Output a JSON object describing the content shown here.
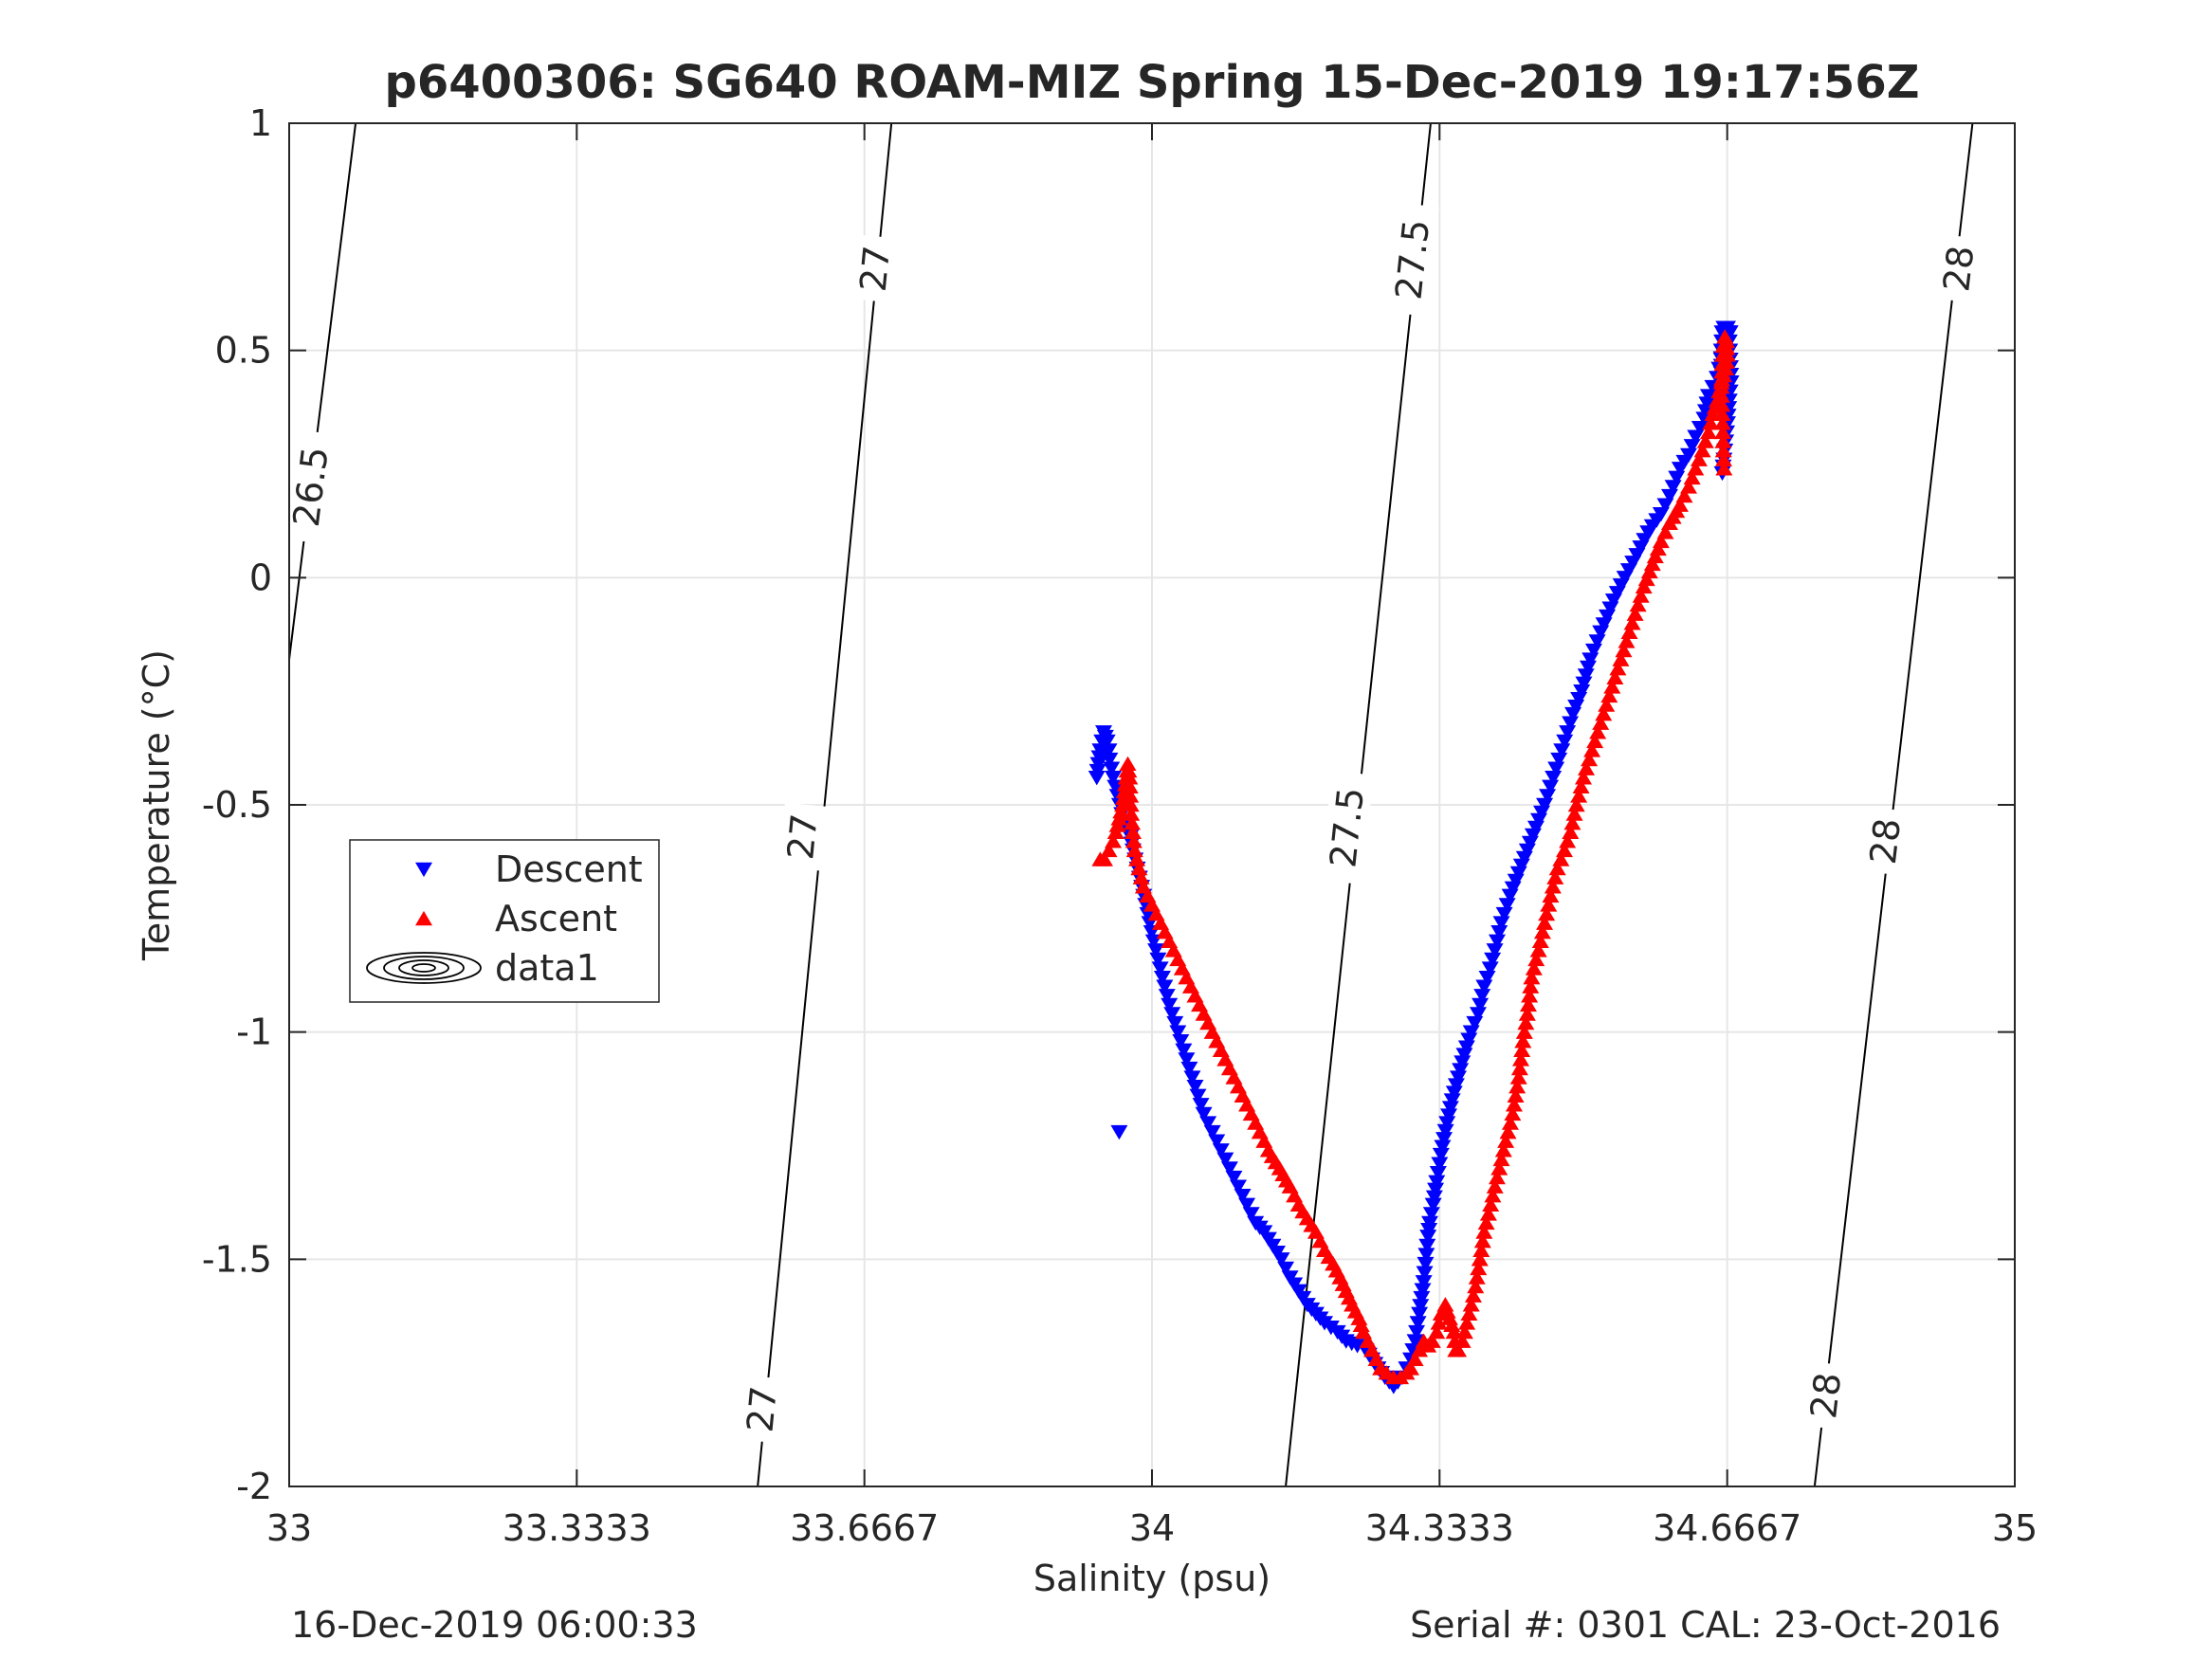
{
  "chart_data": {
    "type": "scatter",
    "title": "p6400306: SG640 ROAM-MIZ Spring 15-Dec-2019 19:17:56Z",
    "xlabel": "Salinity (psu)",
    "ylabel": "Temperature (°C)",
    "xlim": [
      33,
      35
    ],
    "ylim": [
      -2,
      1
    ],
    "xticks": [
      33,
      33.3333,
      33.6667,
      34,
      34.3333,
      34.6667,
      35
    ],
    "xticklabels": [
      "33",
      "33.3333",
      "33.6667",
      "34",
      "34.3333",
      "34.6667",
      "35"
    ],
    "yticks": [
      -2,
      -1.5,
      -1,
      -0.5,
      0,
      0.5,
      1
    ],
    "yticklabels": [
      "-2",
      "-1.5",
      "-1",
      "-0.5",
      "0",
      "0.5",
      "1"
    ],
    "grid": true,
    "legend_position": "middle-left",
    "footer_left": "16-Dec-2019 06:00:33",
    "footer_right": "Serial #: 0301  CAL: 23-Oct-2016",
    "contours": [
      {
        "level": 26.5,
        "label": "26.5",
        "points": [
          [
            33.077,
            1.0
          ],
          [
            33.0,
            -0.18
          ]
        ],
        "label_at": [
          [
            33.025,
            0.2
          ]
        ]
      },
      {
        "level": 27,
        "label": "27",
        "points": [
          [
            33.698,
            1.0
          ],
          [
            33.543,
            -2.0
          ]
        ],
        "label_at": [
          [
            33.679,
            0.68
          ],
          [
            33.595,
            -0.57
          ],
          [
            33.548,
            -1.83
          ]
        ]
      },
      {
        "level": 27.5,
        "label": "27.5",
        "points": [
          [
            34.323,
            1.0
          ],
          [
            34.155,
            -2.0
          ]
        ],
        "label_at": [
          [
            34.302,
            0.7
          ],
          [
            34.226,
            -0.55
          ]
        ]
      },
      {
        "level": 28,
        "label": "28",
        "points": [
          [
            34.951,
            1.0
          ],
          [
            34.768,
            -2.0
          ]
        ],
        "label_at": [
          [
            34.935,
            0.68
          ],
          [
            34.85,
            -0.58
          ],
          [
            34.781,
            -1.8
          ]
        ]
      }
    ],
    "series": [
      {
        "name": "Descent",
        "color": "#0000ff",
        "marker": "triangle-down",
        "x": [
          34.662,
          34.664,
          34.666,
          34.668,
          34.669,
          34.67,
          34.671,
          34.669,
          34.667,
          34.665,
          34.663,
          34.661,
          34.66,
          34.66,
          34.661,
          34.663,
          34.665,
          34.667,
          34.67,
          34.66,
          34.655,
          34.645,
          34.64,
          34.63,
          34.622,
          34.612,
          34.6,
          34.59,
          34.575,
          34.562,
          34.548,
          34.535,
          34.52,
          34.508,
          34.498,
          34.488,
          34.475,
          34.465,
          34.455,
          34.445,
          34.435,
          34.425,
          34.415,
          34.405,
          34.4,
          34.392,
          34.385,
          34.378,
          34.37,
          34.362,
          34.355,
          34.348,
          34.342,
          34.335,
          34.33,
          34.326,
          34.322,
          34.32,
          34.318,
          34.315,
          34.31,
          34.305,
          34.3,
          34.295,
          34.29,
          34.285,
          34.28,
          34.275,
          34.27,
          34.262,
          34.255,
          34.248,
          34.238,
          34.225,
          34.215,
          34.2,
          34.19,
          34.18,
          34.17,
          34.16,
          34.15,
          34.14,
          34.13,
          34.12,
          34.11,
          34.1,
          34.09,
          34.08,
          34.07,
          34.06,
          34.05,
          34.04,
          34.03,
          34.02,
          34.012,
          34.002,
          33.995,
          33.988,
          33.983,
          33.978,
          33.975,
          33.97,
          33.965,
          33.96,
          33.955,
          33.953,
          33.951,
          33.95,
          33.948,
          33.946,
          33.944,
          33.942,
          33.94,
          33.938,
          33.936,
          33.962
        ],
        "y": [
          0.52,
          0.53,
          0.54,
          0.54,
          0.52,
          0.48,
          0.43,
          0.39,
          0.34,
          0.3,
          0.26,
          0.23,
          0.45,
          0.5,
          0.54,
          0.55,
          0.55,
          0.55,
          0.54,
          0.48,
          0.44,
          0.4,
          0.35,
          0.31,
          0.27,
          0.24,
          0.18,
          0.14,
          0.1,
          0.05,
          0.0,
          -0.05,
          -0.12,
          -0.18,
          -0.25,
          -0.3,
          -0.38,
          -0.44,
          -0.5,
          -0.55,
          -0.6,
          -0.65,
          -0.7,
          -0.76,
          -0.8,
          -0.86,
          -0.9,
          -0.96,
          -1.0,
          -1.05,
          -1.1,
          -1.15,
          -1.2,
          -1.27,
          -1.33,
          -1.38,
          -1.42,
          -1.45,
          -1.49,
          -1.55,
          -1.62,
          -1.68,
          -1.72,
          -1.74,
          -1.76,
          -1.77,
          -1.78,
          -1.77,
          -1.76,
          -1.74,
          -1.72,
          -1.7,
          -1.69,
          -1.68,
          -1.66,
          -1.64,
          -1.62,
          -1.6,
          -1.57,
          -1.54,
          -1.5,
          -1.47,
          -1.44,
          -1.42,
          -1.38,
          -1.34,
          -1.3,
          -1.26,
          -1.22,
          -1.18,
          -1.12,
          -1.06,
          -1.0,
          -0.94,
          -0.88,
          -0.8,
          -0.74,
          -0.68,
          -0.64,
          -0.6,
          -0.57,
          -0.55,
          -0.52,
          -0.48,
          -0.44,
          -0.42,
          -0.4,
          -0.38,
          -0.36,
          -0.35,
          -0.34,
          -0.36,
          -0.38,
          -0.41,
          -0.44,
          -1.22
        ]
      },
      {
        "name": "Ascent",
        "color": "#ff0000",
        "marker": "triangle-up",
        "x": [
          34.663,
          34.662,
          34.661,
          34.66,
          34.661,
          34.662,
          34.664,
          34.666,
          34.667,
          34.665,
          34.66,
          34.655,
          34.65,
          34.645,
          34.638,
          34.63,
          34.622,
          34.612,
          34.6,
          34.59,
          34.58,
          34.57,
          34.56,
          34.55,
          34.54,
          34.53,
          34.52,
          34.51,
          34.5,
          34.492,
          34.485,
          34.478,
          34.47,
          34.462,
          34.455,
          34.448,
          34.44,
          34.435,
          34.43,
          34.425,
          34.418,
          34.41,
          34.405,
          34.4,
          34.395,
          34.39,
          34.385,
          34.38,
          34.375,
          34.37,
          34.365,
          34.36,
          34.355,
          34.352,
          34.35,
          34.345,
          34.34,
          34.335,
          34.33,
          34.325,
          34.32,
          34.315,
          34.31,
          34.305,
          34.3,
          34.295,
          34.288,
          34.28,
          34.272,
          34.265,
          34.26,
          34.255,
          34.25,
          34.245,
          34.24,
          34.232,
          34.225,
          34.218,
          34.21,
          34.2,
          34.19,
          34.18,
          34.17,
          34.16,
          34.148,
          34.135,
          34.12,
          34.11,
          34.1,
          34.09,
          34.08,
          34.07,
          34.06,
          34.05,
          34.04,
          34.03,
          34.02,
          34.01,
          34.0,
          33.99,
          33.985,
          33.98,
          33.978,
          33.976,
          33.975,
          33.974,
          33.972,
          33.97,
          33.968,
          33.966,
          33.962,
          33.958,
          33.955,
          33.95,
          33.945,
          33.94
        ],
        "y": [
          0.24,
          0.3,
          0.36,
          0.42,
          0.47,
          0.51,
          0.53,
          0.52,
          0.49,
          0.46,
          0.43,
          0.39,
          0.36,
          0.32,
          0.28,
          0.24,
          0.2,
          0.16,
          0.12,
          0.08,
          0.03,
          -0.02,
          -0.08,
          -0.14,
          -0.2,
          -0.26,
          -0.32,
          -0.38,
          -0.44,
          -0.5,
          -0.56,
          -0.6,
          -0.64,
          -0.7,
          -0.76,
          -0.82,
          -0.88,
          -0.96,
          -1.02,
          -1.1,
          -1.18,
          -1.24,
          -1.28,
          -1.32,
          -1.36,
          -1.4,
          -1.44,
          -1.5,
          -1.56,
          -1.6,
          -1.64,
          -1.68,
          -1.7,
          -1.7,
          -1.66,
          -1.63,
          -1.6,
          -1.62,
          -1.66,
          -1.68,
          -1.69,
          -1.68,
          -1.7,
          -1.72,
          -1.74,
          -1.75,
          -1.76,
          -1.76,
          -1.75,
          -1.74,
          -1.72,
          -1.7,
          -1.68,
          -1.66,
          -1.63,
          -1.6,
          -1.57,
          -1.54,
          -1.51,
          -1.48,
          -1.44,
          -1.41,
          -1.38,
          -1.34,
          -1.3,
          -1.26,
          -1.2,
          -1.16,
          -1.12,
          -1.08,
          -1.04,
          -1.0,
          -0.96,
          -0.92,
          -0.88,
          -0.84,
          -0.8,
          -0.76,
          -0.72,
          -0.68,
          -0.64,
          -0.6,
          -0.56,
          -0.52,
          -0.48,
          -0.44,
          -0.41,
          -0.44,
          -0.47,
          -0.5,
          -0.53,
          -0.56,
          -0.58,
          -0.6,
          -0.62,
          -0.62
        ]
      }
    ],
    "legend": [
      {
        "label": "Descent",
        "marker": "triangle-down",
        "color": "#0000ff"
      },
      {
        "label": "Ascent",
        "marker": "triangle-up",
        "color": "#ff0000"
      },
      {
        "label": "data1",
        "marker": "contour",
        "color": "#000000"
      }
    ]
  }
}
